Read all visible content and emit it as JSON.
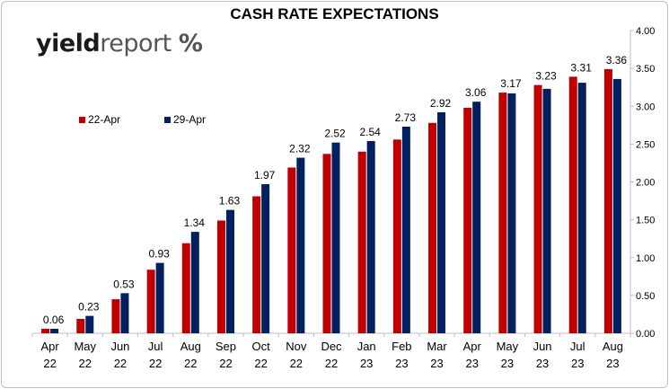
{
  "chart_data": {
    "type": "bar",
    "title": "CASH RATE EXPECTATIONS",
    "brand": {
      "part1": "yield",
      "part2": "report",
      "symbol": "%"
    },
    "categories": [
      [
        "Apr",
        "22"
      ],
      [
        "May",
        "22"
      ],
      [
        "Jun",
        "22"
      ],
      [
        "Jul",
        "22"
      ],
      [
        "Aug",
        "22"
      ],
      [
        "Sep",
        "22"
      ],
      [
        "Oct",
        "22"
      ],
      [
        "Nov",
        "22"
      ],
      [
        "Dec",
        "22"
      ],
      [
        "Jan",
        "23"
      ],
      [
        "Feb",
        "23"
      ],
      [
        "Mar",
        "23"
      ],
      [
        "Apr",
        "23"
      ],
      [
        "May",
        "23"
      ],
      [
        "Jun",
        "23"
      ],
      [
        "Jul",
        "23"
      ],
      [
        "Aug",
        "23"
      ]
    ],
    "series": [
      {
        "name": "22-Apr",
        "color": "#c00000",
        "values": [
          0.06,
          0.19,
          0.45,
          0.84,
          1.19,
          1.49,
          1.81,
          2.19,
          2.37,
          2.4,
          2.56,
          2.78,
          2.98,
          3.18,
          3.28,
          3.39,
          3.49
        ]
      },
      {
        "name": "29-Apr",
        "color": "#002060",
        "values": [
          0.06,
          0.23,
          0.53,
          0.93,
          1.34,
          1.63,
          1.97,
          2.32,
          2.52,
          2.54,
          2.73,
          2.92,
          3.06,
          3.17,
          3.23,
          3.31,
          3.36
        ],
        "labels": [
          "0.06",
          "0.23",
          "0.53",
          "0.93",
          "1.34",
          "1.63",
          "1.97",
          "2.32",
          "2.52",
          "2.54",
          "2.73",
          "2.92",
          "3.06",
          "3.17",
          "3.23",
          "3.31",
          "3.36"
        ]
      }
    ],
    "yaxis": {
      "position": "right",
      "min": 0,
      "max": 4,
      "step": 0.5,
      "ticks": [
        "0.00",
        "0.50",
        "1.00",
        "1.50",
        "2.00",
        "2.50",
        "3.00",
        "3.50",
        "4.00"
      ]
    },
    "grid": false,
    "legend": "upper-left"
  }
}
